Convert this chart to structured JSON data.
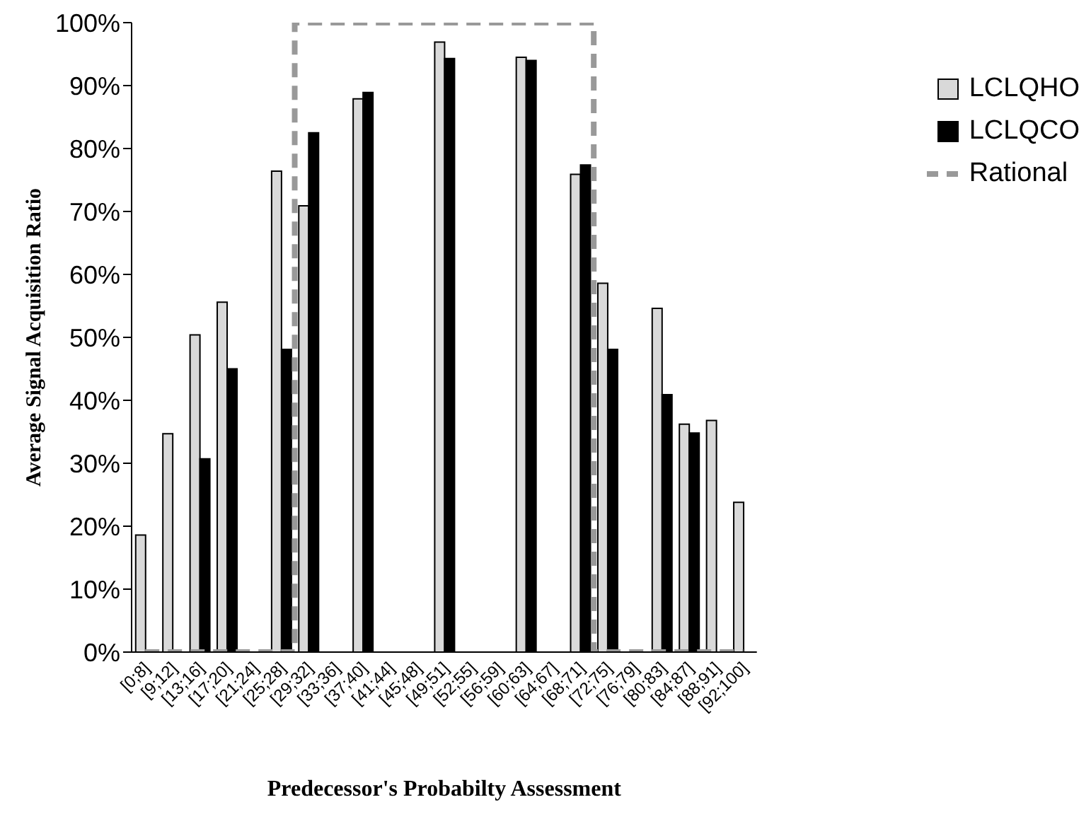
{
  "chart_data": {
    "type": "bar",
    "xlabel": "Predecessor's Probabilty Assessment",
    "ylabel": "Average Signal Acquisition Ratio",
    "categories": [
      "[0;8]",
      "[9;12]",
      "[13;16]",
      "[17;20]",
      "[21;24]",
      "[25;28]",
      "[29;32]",
      "[33;36]",
      "[37;40]",
      "[41;44]",
      "[45;48]",
      "[49;51]",
      "[52;55]",
      "[56;59]",
      "[60;63]",
      "[64;67]",
      "[68;71]",
      "[72;75]",
      "[76;79]",
      "[80;83]",
      "[84;87]",
      "[88;91]",
      "[92;100]"
    ],
    "series": [
      {
        "name": "LCLQHO",
        "color": "#d9d9d9",
        "values": [
          18.6,
          34.7,
          50.4,
          55.6,
          null,
          76.4,
          70.9,
          null,
          87.9,
          null,
          null,
          96.9,
          null,
          null,
          94.5,
          null,
          75.9,
          58.6,
          null,
          54.6,
          36.2,
          36.8,
          23.8
        ]
      },
      {
        "name": "LCLQCO",
        "color": "#000000",
        "values": [
          null,
          null,
          30.7,
          45.0,
          null,
          48.1,
          82.5,
          null,
          88.9,
          null,
          null,
          94.3,
          null,
          null,
          94.0,
          null,
          77.4,
          48.1,
          null,
          40.9,
          34.8,
          null,
          null
        ]
      },
      {
        "name": "Rational",
        "type": "step",
        "color": "#999999",
        "line_style": "dashed",
        "values": [
          0,
          0,
          0,
          0,
          0,
          0,
          100,
          100,
          100,
          100,
          100,
          100,
          100,
          100,
          100,
          100,
          100,
          0,
          0,
          0,
          0,
          0,
          0
        ]
      }
    ],
    "ylim": [
      0,
      100
    ],
    "yticks": [
      {
        "value": 0,
        "label": "0%"
      },
      {
        "value": 10,
        "label": "10%"
      },
      {
        "value": 20,
        "label": "20%"
      },
      {
        "value": 30,
        "label": "30%"
      },
      {
        "value": 40,
        "label": "40%"
      },
      {
        "value": 50,
        "label": "50%"
      },
      {
        "value": 60,
        "label": "60%"
      },
      {
        "value": 70,
        "label": "70%"
      },
      {
        "value": 80,
        "label": "80%"
      },
      {
        "value": 90,
        "label": "90%"
      },
      {
        "value": 100,
        "label": "100%"
      }
    ],
    "grid": false,
    "legend": "top right"
  }
}
